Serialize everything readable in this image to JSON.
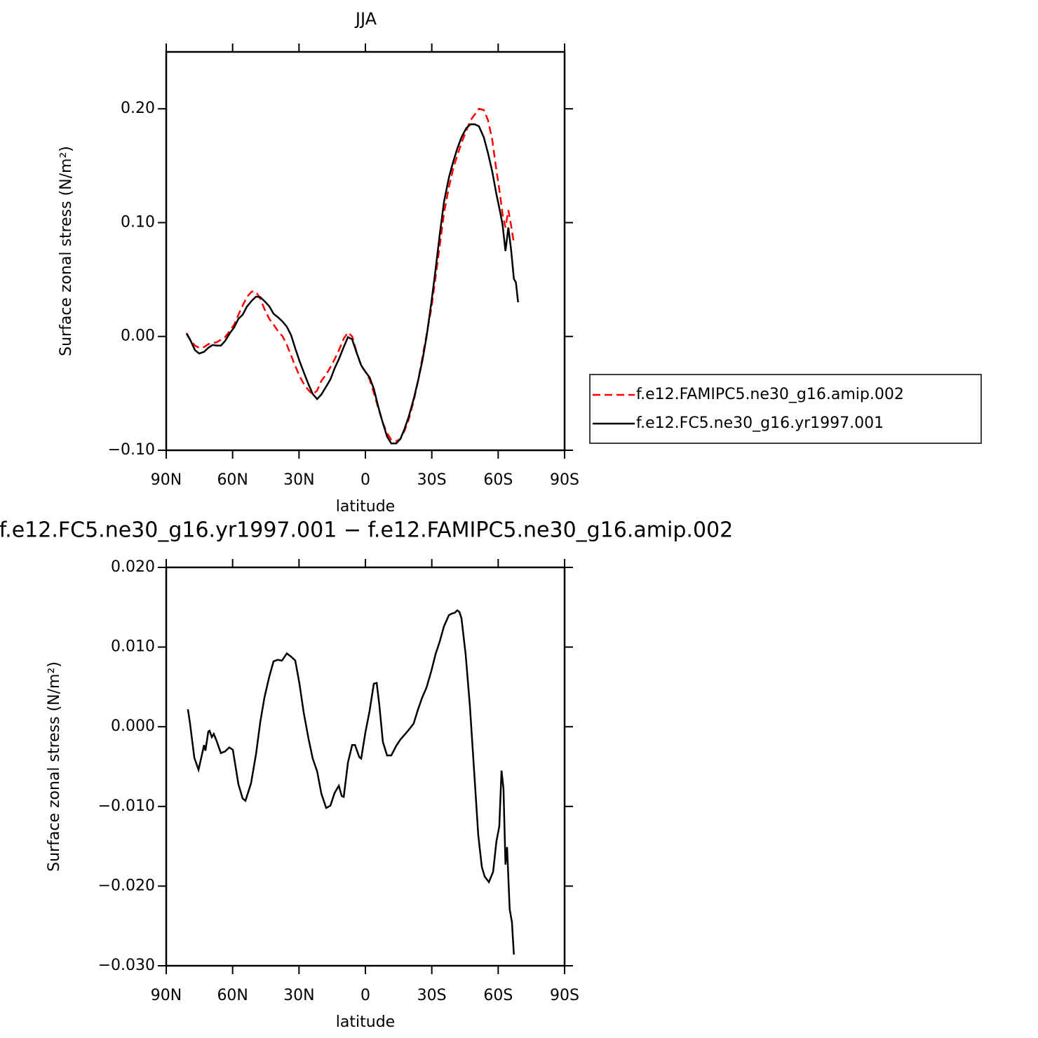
{
  "chart_data": [
    {
      "type": "line",
      "title": "JJA",
      "xlabel": "latitude",
      "ylabel": "Surface zonal stress (N/m²)",
      "xlim": [
        90,
        -90
      ],
      "ylim": [
        -0.1,
        0.25
      ],
      "xticks": [
        {
          "value": 90,
          "label": "90N"
        },
        {
          "value": 60,
          "label": "60N"
        },
        {
          "value": 30,
          "label": "30N"
        },
        0,
        {
          "value": -30,
          "label": "30S"
        },
        {
          "value": -60,
          "label": "60S"
        },
        {
          "value": -90,
          "label": "90S"
        }
      ],
      "yticks": [
        {
          "value": -0.1,
          "label": "−0.10"
        },
        {
          "value": 0,
          "label": "0.00"
        },
        {
          "value": 0.1,
          "label": "0.10"
        },
        {
          "value": 0.2,
          "label": "0.20"
        }
      ],
      "legend": "right",
      "x": [
        80.8,
        78.9,
        77,
        75.1,
        72.9,
        71,
        69.1,
        67.2,
        65.3,
        63.4,
        61.2,
        59.3,
        57.4,
        55.5,
        53.6,
        51.3,
        49.4,
        47.5,
        45.6,
        43.4,
        41.5,
        39.6,
        37.4,
        35.5,
        33.6,
        31.7,
        29.8,
        27.6,
        25.6,
        23.8,
        21.8,
        19.9,
        17.7,
        15.8,
        13.9,
        12.0,
        9.8,
        7.9,
        6.0,
        4.1,
        1.9,
        0,
        -1.9,
        -3.8,
        -6.0,
        -7.9,
        -9.8,
        -11.7,
        -13.9,
        -15.8,
        -17.7,
        -19.6,
        -21.8,
        -23.8,
        -25.7,
        -27.6,
        -29.8,
        -31.7,
        -33.6,
        -35.5,
        -37.7,
        -39.6,
        -41.5,
        -43.4,
        -45.6,
        -47.5,
        -49.4,
        -51.3,
        -53.5,
        -55.4,
        -57.3,
        -59.2,
        -60.8,
        -62.0,
        -63.3,
        -64.6,
        -65.8,
        -67.1,
        -68.0,
        -69.0
      ],
      "series": [
        {
          "name": "f.e12.FAMIPC5.ne30_g16.amip.002",
          "color": "#ff0000",
          "dash": true,
          "values": [
            0.003,
            -0.0037,
            -0.008,
            -0.01,
            -0.0093,
            -0.0068,
            -0.006,
            -0.005,
            -0.003,
            -0.0006,
            0.005,
            0.0105,
            0.019,
            0.027,
            0.0346,
            0.0395,
            0.039,
            0.0333,
            0.024,
            0.0154,
            0.0105,
            0.005,
            0,
            -0.0074,
            -0.0167,
            -0.026,
            -0.0346,
            -0.0426,
            -0.0475,
            -0.051,
            -0.0475,
            -0.039,
            -0.0333,
            -0.027,
            -0.02,
            -0.0123,
            -0.0019,
            0.0035,
            0.0,
            -0.013,
            -0.026,
            -0.031,
            -0.0377,
            -0.0494,
            -0.064,
            -0.076,
            -0.085,
            -0.0907,
            -0.092,
            -0.09,
            -0.0827,
            -0.0728,
            -0.0568,
            -0.0389,
            -0.0191,
            0.0012,
            0.0247,
            0.0519,
            0.0796,
            0.108,
            0.131,
            0.147,
            0.159,
            0.17,
            0.181,
            0.19,
            0.195,
            0.2,
            0.199,
            0.19,
            0.173,
            0.146,
            0.125,
            0.107,
            0.0957,
            0.111,
            0.098,
            0.082,
            null,
            null
          ]
        },
        {
          "name": "f.e12.FC5.ne30_g16.yr1997.001",
          "color": "#000000",
          "dash": false,
          "values": [
            0.0025,
            -0.004,
            -0.012,
            -0.015,
            -0.0135,
            -0.01,
            -0.0075,
            -0.008,
            -0.008,
            -0.004,
            0.003,
            0.008,
            0.0155,
            0.019,
            0.026,
            0.0315,
            0.035,
            0.0345,
            0.031,
            0.0265,
            0.02,
            0.017,
            0.013,
            0.0085,
            0.0012,
            -0.0105,
            -0.0215,
            -0.0327,
            -0.0426,
            -0.0506,
            -0.055,
            -0.051,
            -0.044,
            -0.0377,
            -0.028,
            -0.02,
            -0.0093,
            -0.0006,
            -0.0025,
            -0.0136,
            -0.0253,
            -0.031,
            -0.036,
            -0.046,
            -0.063,
            -0.076,
            -0.088,
            -0.094,
            -0.094,
            -0.09,
            -0.081,
            -0.0704,
            -0.055,
            -0.0389,
            -0.0216,
            -0.0006,
            0.0296,
            0.0586,
            0.0895,
            0.118,
            0.1395,
            0.153,
            0.165,
            0.175,
            0.183,
            0.1864,
            0.1864,
            0.1846,
            0.175,
            0.161,
            0.145,
            0.125,
            0.11,
            0.098,
            0.075,
            0.0957,
            0.077,
            0.0506,
            0.0475,
            0.03
          ]
        }
      ]
    },
    {
      "type": "line",
      "title": "f.e12.FC5.ne30_g16.yr1997.001 − f.e12.FAMIPC5.ne30_g16.amip.002",
      "xlabel": "latitude",
      "ylabel": "Surface zonal stress (N/m²)",
      "xlim": [
        90,
        -90
      ],
      "ylim": [
        -0.03,
        0.02
      ],
      "xticks": [
        {
          "value": 90,
          "label": "90N"
        },
        {
          "value": 60,
          "label": "60N"
        },
        {
          "value": 30,
          "label": "30N"
        },
        0,
        {
          "value": -30,
          "label": "30S"
        },
        {
          "value": -60,
          "label": "60S"
        },
        {
          "value": -90,
          "label": "90S"
        }
      ],
      "yticks": [
        {
          "value": -0.03,
          "label": "−0.030"
        },
        {
          "value": -0.02,
          "label": "−0.020"
        },
        {
          "value": -0.01,
          "label": "−0.010"
        },
        {
          "value": 0,
          "label": "0.000"
        },
        {
          "value": 0.01,
          "label": "0.010"
        },
        {
          "value": 0.02,
          "label": "0.020"
        }
      ],
      "color": "#000000",
      "x": [
        80.2,
        79.3,
        77.3,
        75.4,
        72.9,
        72.3,
        71.0,
        70.4,
        69.4,
        68.5,
        67.2,
        65.3,
        63.4,
        61.5,
        59.9,
        57.4,
        55.5,
        54.2,
        51.7,
        49.4,
        47.5,
        45.6,
        43.4,
        41.5,
        39.6,
        37.7,
        35.5,
        33.6,
        31.7,
        29.8,
        27.9,
        25.7,
        23.8,
        21.8,
        19.9,
        17.7,
        15.8,
        13.9,
        12.0,
        10.7,
        9.8,
        7.9,
        6.0,
        4.7,
        2.8,
        1.9,
        0,
        -1.9,
        -3.8,
        -5.1,
        -6.3,
        -7.9,
        -9.8,
        -11.7,
        -13.9,
        -15.8,
        -17.7,
        -19.6,
        -21.8,
        -23.8,
        -25.7,
        -27.6,
        -29.8,
        -31.7,
        -33.6,
        -35.5,
        -37.7,
        -39.0,
        -40.3,
        -41.5,
        -42.5,
        -43.4,
        -45.3,
        -47.2,
        -49.1,
        -51.0,
        -52.6,
        -53.9,
        -55.8,
        -57.7,
        -59.2,
        -60.5,
        -61.5,
        -62.4,
        -63.3,
        -64.0,
        -65.2,
        -66.2,
        -67.1
      ],
      "values": [
        0.0022,
        0.0005,
        -0.0039,
        -0.0054,
        -0.0023,
        -0.003,
        -0.0006,
        -0.0005,
        -0.0013,
        -0.0009,
        -0.0018,
        -0.0033,
        -0.0031,
        -0.0026,
        -0.0029,
        -0.0072,
        -0.009,
        -0.0093,
        -0.0071,
        -0.0034,
        0.0006,
        0.0037,
        0.0063,
        0.0082,
        0.0084,
        0.0083,
        0.0092,
        0.0088,
        0.0083,
        0.0054,
        0.0018,
        -0.0015,
        -0.004,
        -0.0056,
        -0.0084,
        -0.0102,
        -0.0099,
        -0.0083,
        -0.0074,
        -0.0087,
        -0.0088,
        -0.0045,
        -0.0023,
        -0.0023,
        -0.0038,
        -0.004,
        -0.0007,
        0.002,
        0.0054,
        0.0055,
        0.0027,
        -0.0019,
        -0.0036,
        -0.0036,
        -0.0024,
        -0.0016,
        -0.001,
        -0.0004,
        0.0004,
        0.0022,
        0.0037,
        0.0049,
        0.007,
        0.0091,
        0.0107,
        0.0126,
        0.014,
        0.0142,
        0.0143,
        0.0146,
        0.0144,
        0.0136,
        0.0091,
        0.0027,
        -0.0054,
        -0.0136,
        -0.0176,
        -0.0188,
        -0.0195,
        -0.0182,
        -0.0144,
        -0.0125,
        -0.0055,
        -0.0078,
        -0.0173,
        -0.0151,
        -0.0229,
        -0.0245,
        -0.0286
      ]
    }
  ]
}
